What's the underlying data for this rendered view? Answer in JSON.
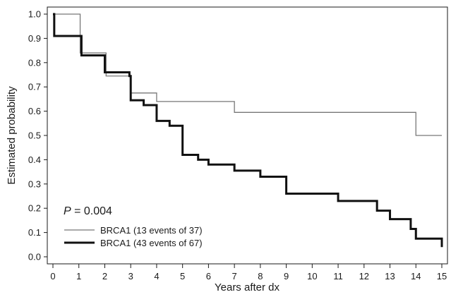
{
  "chart_data": {
    "type": "line",
    "subtype": "step (Kaplan-Meier)",
    "xlabel": "Years after dx",
    "ylabel": "Estimated probability",
    "xlim": [
      0,
      15
    ],
    "ylim": [
      0.0,
      1.0
    ],
    "x_ticks": [
      "0",
      "1",
      "2",
      "3",
      "4",
      "5",
      "6",
      "7",
      "8",
      "9",
      "10",
      "11",
      "12",
      "13",
      "14",
      "15"
    ],
    "y_ticks": [
      "0.0",
      "0.1",
      "0.2",
      "0.3",
      "0.4",
      "0.5",
      "0.6",
      "0.7",
      "0.8",
      "0.9",
      "1.0"
    ],
    "grid": false,
    "legend_position": "bottom-left",
    "annotation": {
      "prefix": "P",
      "text": " = 0.004"
    },
    "series": [
      {
        "name": "BRCA1 (13 events of 37)",
        "color": "#777777",
        "line_style": "thin",
        "x": [
          0,
          1.0,
          1.05,
          2.0,
          2.05,
          3.0,
          4.0,
          7.0,
          14.0,
          15.0
        ],
        "y": [
          1.0,
          1.0,
          0.84,
          0.84,
          0.745,
          0.675,
          0.64,
          0.595,
          0.5,
          0.5
        ]
      },
      {
        "name": "BRCA1 (43 events of 67)",
        "color": "#111111",
        "line_style": "thick",
        "x": [
          0,
          0.05,
          1.0,
          1.1,
          2.0,
          2.95,
          3.0,
          3.5,
          4.0,
          4.5,
          5.0,
          5.6,
          6.0,
          7.0,
          8.0,
          9.0,
          10.0,
          11.0,
          12.0,
          12.5,
          13.0,
          13.5,
          13.8,
          14.0,
          14.9,
          15.0
        ],
        "y": [
          1.0,
          0.91,
          0.91,
          0.83,
          0.76,
          0.745,
          0.645,
          0.625,
          0.56,
          0.54,
          0.42,
          0.4,
          0.38,
          0.355,
          0.33,
          0.26,
          0.26,
          0.23,
          0.23,
          0.19,
          0.155,
          0.155,
          0.115,
          0.075,
          0.075,
          0.04
        ]
      }
    ]
  }
}
